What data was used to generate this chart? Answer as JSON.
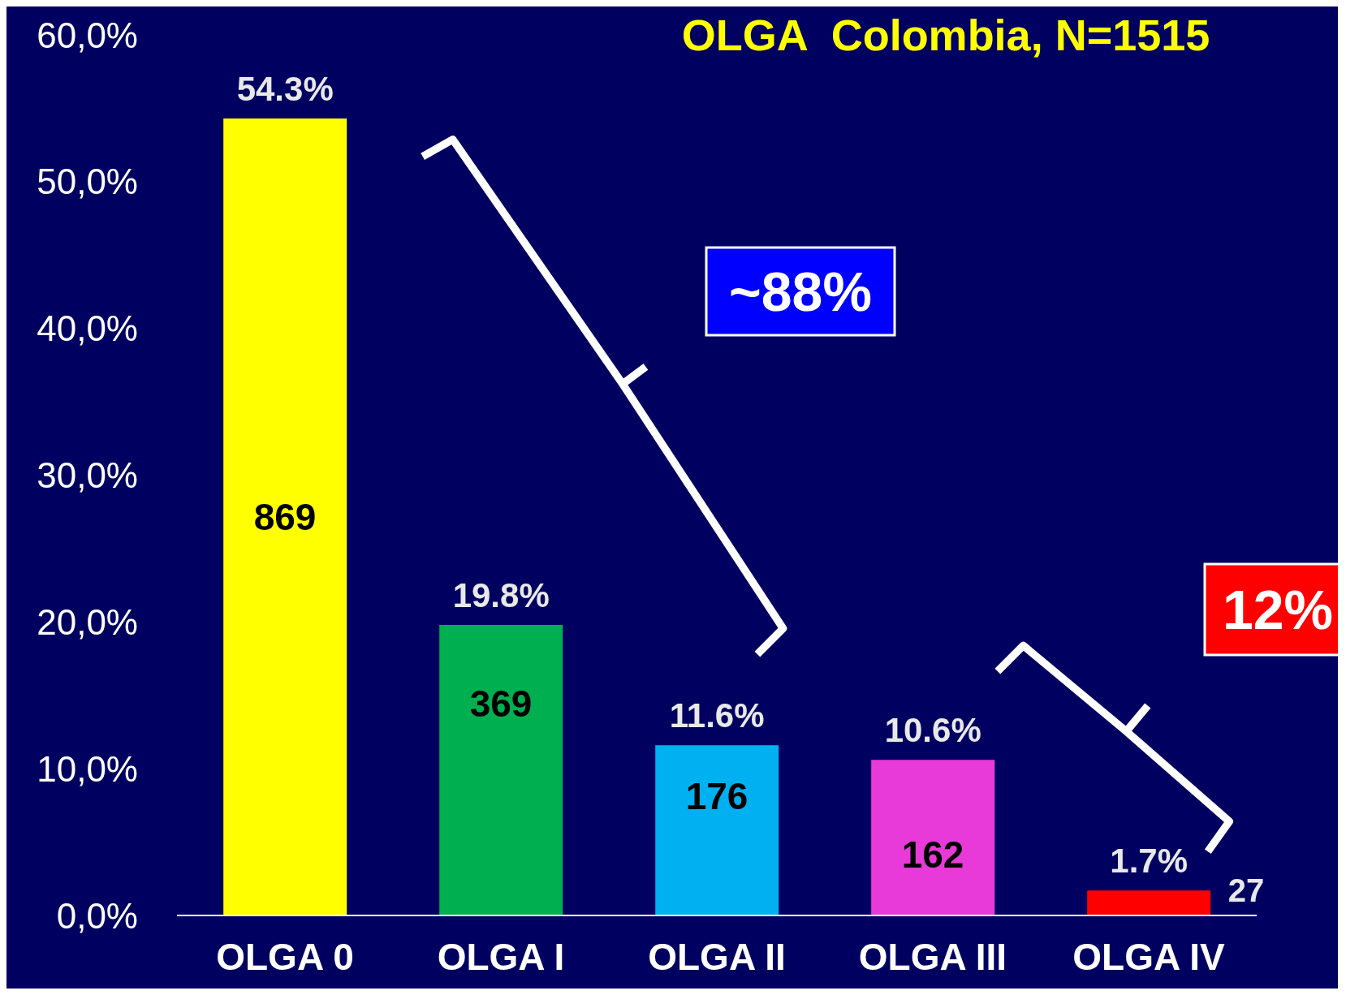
{
  "chart_data": {
    "type": "bar",
    "title": "OLGA  Colombia, N=1515",
    "categories": [
      "OLGA 0",
      "OLGA I",
      "OLGA II",
      "OLGA III",
      "OLGA IV"
    ],
    "values": [
      54.3,
      19.8,
      11.6,
      10.6,
      1.7
    ],
    "colors": [
      "#ffff00",
      "#00b050",
      "#00b0f0",
      "#e83ad8",
      "#ff0000"
    ],
    "value_labels": [
      "54.3%",
      "19.8%",
      "11.6%",
      "10.6%",
      "1.7%"
    ],
    "ylim": [
      0,
      60
    ],
    "yticks": [
      {
        "value": 0,
        "label": "0,0%"
      },
      {
        "value": 10,
        "label": "10,0%"
      },
      {
        "value": 20,
        "label": "20,0%"
      },
      {
        "value": 30,
        "label": "30,0%"
      },
      {
        "value": 40,
        "label": "40,0%"
      },
      {
        "value": 50,
        "label": "50,0%"
      },
      {
        "value": 60,
        "label": "60,0%"
      }
    ],
    "grid": false,
    "annotations": [
      "869",
      "369",
      "176",
      "162",
      {
        "text": "27",
        "x": "OLGA IV",
        "y": 1.7
      },
      "~88%",
      "12%"
    ]
  }
}
